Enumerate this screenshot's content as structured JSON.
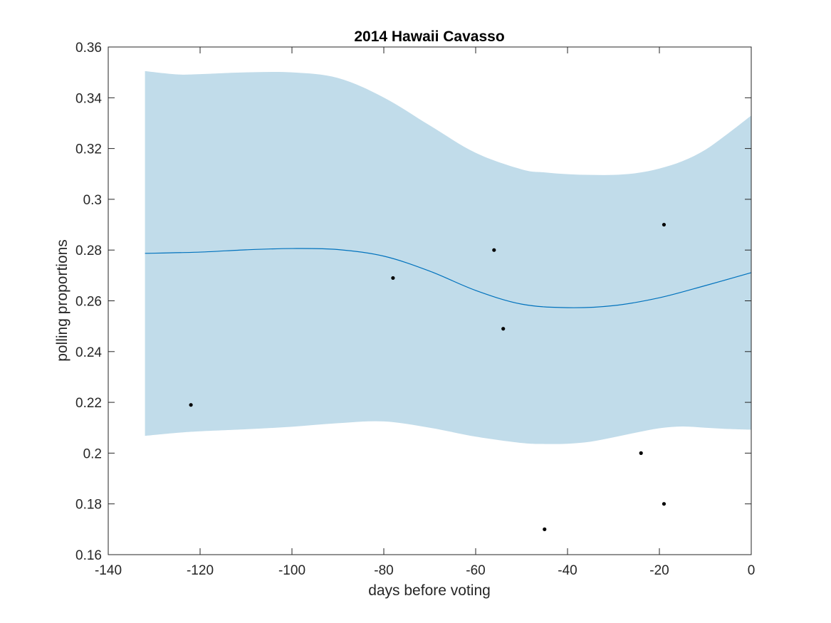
{
  "chart_data": {
    "type": "line",
    "title": "2014 Hawaii Cavasso",
    "xlabel": "days before voting",
    "ylabel": "polling proportions",
    "xlim": [
      -140,
      0
    ],
    "ylim": [
      0.16,
      0.36
    ],
    "xticks": [
      -140,
      -120,
      -100,
      -80,
      -60,
      -40,
      -20,
      0
    ],
    "xtick_labels": [
      "-140",
      "-120",
      "-100",
      "-80",
      "-60",
      "-40",
      "-20",
      "0"
    ],
    "yticks": [
      0.16,
      0.18,
      0.2,
      0.22,
      0.24,
      0.26,
      0.28,
      0.3,
      0.32,
      0.34,
      0.36
    ],
    "ytick_labels": [
      "0.16",
      "0.18",
      "0.2",
      "0.22",
      "0.24",
      "0.26",
      "0.28",
      "0.3",
      "0.32",
      "0.34",
      "0.36"
    ],
    "grid": false,
    "colors": {
      "band": "#c1dcea",
      "line": "#0072bd",
      "points": "#000000"
    },
    "trend": {
      "x": [
        -132,
        -120,
        -110,
        -100,
        -90,
        -80,
        -70,
        -60,
        -50,
        -40,
        -30,
        -20,
        -10,
        0
      ],
      "y": [
        0.2787,
        0.2792,
        0.2801,
        0.2806,
        0.2802,
        0.2776,
        0.2717,
        0.2641,
        0.2587,
        0.2573,
        0.2581,
        0.2612,
        0.266,
        0.2711
      ]
    },
    "band": {
      "x": [
        -132,
        -125,
        -120,
        -110,
        -100,
        -90,
        -80,
        -70,
        -60,
        -50,
        -45,
        -40,
        -35,
        -30,
        -25,
        -20,
        -15,
        -10,
        -5,
        0
      ],
      "upper": [
        0.3505,
        0.3492,
        0.3493,
        0.35,
        0.35,
        0.3478,
        0.3401,
        0.3291,
        0.3183,
        0.3118,
        0.3106,
        0.3099,
        0.3096,
        0.3096,
        0.3103,
        0.3121,
        0.315,
        0.3195,
        0.326,
        0.333
      ],
      "lower": [
        0.2068,
        0.208,
        0.2086,
        0.2094,
        0.2104,
        0.2118,
        0.2125,
        0.21,
        0.2065,
        0.204,
        0.2036,
        0.2037,
        0.2045,
        0.2062,
        0.2081,
        0.2098,
        0.2105,
        0.21,
        0.2095,
        0.2092
      ]
    },
    "points": {
      "x": [
        -122,
        -78,
        -56,
        -54,
        -45,
        -24,
        -19,
        -19
      ],
      "y": [
        0.219,
        0.269,
        0.28,
        0.249,
        0.17,
        0.2,
        0.29,
        0.18
      ]
    }
  }
}
